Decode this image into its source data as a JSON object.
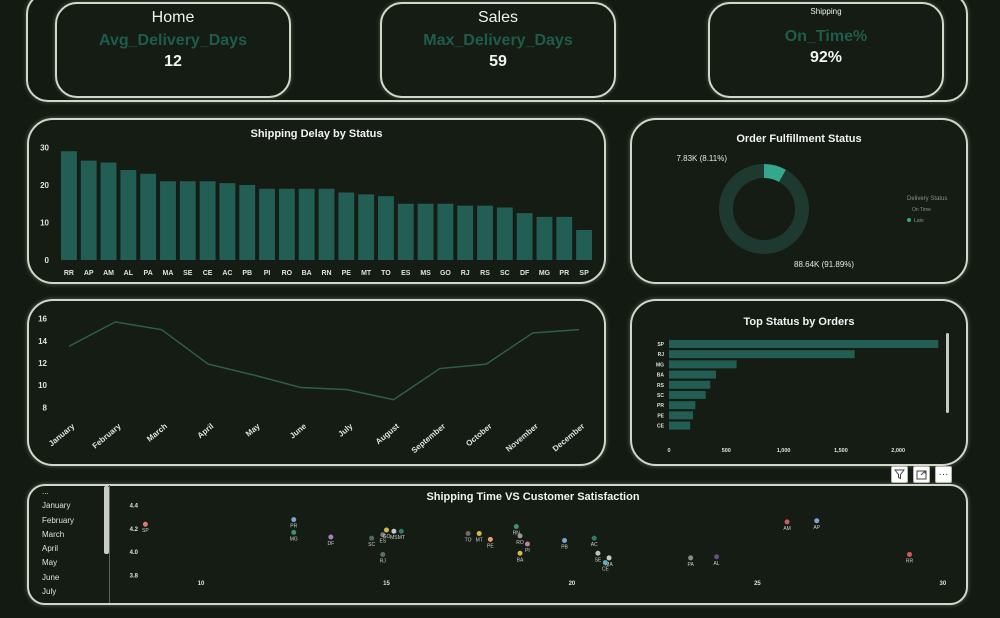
{
  "kpis": [
    {
      "nav": "Home",
      "metric": "Avg_Delivery_Days",
      "value": "12"
    },
    {
      "nav": "Sales",
      "metric": "Max_Delivery_Days",
      "value": "59"
    },
    {
      "nav": "Shipping",
      "metric": "On_Time%",
      "value": "92%"
    }
  ],
  "delay_chart": {
    "chart_data": {
      "type": "bar",
      "title": "Shipping Delay by Status",
      "categories": [
        "RR",
        "AP",
        "AM",
        "AL",
        "PA",
        "MA",
        "SE",
        "CE",
        "AC",
        "PB",
        "PI",
        "RO",
        "BA",
        "RN",
        "PE",
        "MT",
        "TO",
        "ES",
        "MS",
        "GO",
        "RJ",
        "RS",
        "SC",
        "DF",
        "MG",
        "PR",
        "SP"
      ],
      "values": [
        29,
        26.5,
        26,
        24,
        23,
        21,
        21,
        21,
        20.5,
        20,
        19,
        19,
        19,
        19,
        18,
        17.5,
        17,
        15,
        15,
        15,
        14.5,
        14.5,
        14,
        12.5,
        11.5,
        11.5,
        8
      ],
      "yticks": [
        0,
        10,
        20,
        30
      ],
      "ylim": [
        0,
        32
      ],
      "color": "#235e54"
    }
  },
  "fulfillment": {
    "chart_data": {
      "type": "pie",
      "title": "Order Fulfillment Status",
      "slices": [
        {
          "name": "Late",
          "value": 7.83,
          "label": "7.83K (8.11%)",
          "color": "#33a88e"
        },
        {
          "name": "On Time",
          "value": 88.64,
          "label": "88.64K (91.89%)",
          "color": "#1e3a30"
        }
      ],
      "legend_title": "Delivery Status",
      "legend": [
        "On Time",
        "Late"
      ]
    }
  },
  "monthly_line": {
    "chart_data": {
      "type": "line",
      "categories": [
        "January",
        "February",
        "March",
        "April",
        "May",
        "June",
        "July",
        "August",
        "September",
        "October",
        "November",
        "December"
      ],
      "values": [
        13.5,
        15.7,
        15,
        11.9,
        10.9,
        9.8,
        9.6,
        8.7,
        11.5,
        11.9,
        14.7,
        15
      ],
      "yticks": [
        8,
        10,
        12,
        14,
        16
      ],
      "ylim": [
        7.5,
        16.5
      ],
      "color": "#2c5e50"
    }
  },
  "top_status": {
    "chart_data": {
      "type": "bar",
      "orientation": "horizontal",
      "title": "Top Status by Orders",
      "categories": [
        "SP",
        "RJ",
        "MG",
        "BA",
        "RS",
        "SC",
        "PR",
        "PE",
        "CE"
      ],
      "values": [
        2350,
        1620,
        590,
        410,
        360,
        320,
        230,
        210,
        185
      ],
      "xticks": [
        0,
        500,
        1000,
        1500,
        2000
      ],
      "xtick_labels": [
        "0",
        "500",
        "1,000",
        "1,500",
        "2,000"
      ],
      "xlim": [
        0,
        2400
      ],
      "color": "#235e54"
    }
  },
  "scatter": {
    "chart_data": {
      "type": "scatter",
      "title": "Shipping Time VS Customer Satisfaction",
      "xticks": [
        10,
        15,
        20,
        25,
        30
      ],
      "yticks": [
        3.8,
        4.0,
        4.2,
        4.4
      ],
      "xlim": [
        7.6,
        30.3
      ],
      "ylim": [
        3.76,
        4.44
      ],
      "points": [
        {
          "label": "SP",
          "x": 8.5,
          "y": 4.24,
          "color": "#e07a6a"
        },
        {
          "label": "PR",
          "x": 12.5,
          "y": 4.28,
          "color": "#7aa6d6"
        },
        {
          "label": "MG",
          "x": 12.5,
          "y": 4.17,
          "color": "#3d8f75"
        },
        {
          "label": "DF",
          "x": 13.5,
          "y": 4.13,
          "color": "#a87bc9"
        },
        {
          "label": "SC",
          "x": 14.6,
          "y": 4.12,
          "color": "#4a6a64"
        },
        {
          "label": "ES",
          "x": 14.9,
          "y": 4.15,
          "color": "#7a7a7a"
        },
        {
          "label": "GO",
          "x": 15.0,
          "y": 4.19,
          "color": "#d4b848"
        },
        {
          "label": "MS",
          "x": 15.2,
          "y": 4.18,
          "color": "#c8c8c8"
        },
        {
          "label": "MT",
          "x": 15.4,
          "y": 4.18,
          "color": "#2d7a6a"
        },
        {
          "label": "RJ",
          "x": 14.9,
          "y": 3.98,
          "color": "#5a6e6a"
        },
        {
          "label": "TO",
          "x": 17.2,
          "y": 4.16,
          "color": "#6a6a6a"
        },
        {
          "label": "MT",
          "x": 17.5,
          "y": 4.16,
          "color": "#d4b848"
        },
        {
          "label": "PE",
          "x": 17.8,
          "y": 4.11,
          "color": "#e0a070"
        },
        {
          "label": "RN",
          "x": 18.5,
          "y": 4.22,
          "color": "#3d8f75"
        },
        {
          "label": "RO",
          "x": 18.6,
          "y": 4.14,
          "color": "#9a9a9a"
        },
        {
          "label": "PI",
          "x": 18.8,
          "y": 4.07,
          "color": "#c07ab0"
        },
        {
          "label": "BA",
          "x": 18.6,
          "y": 3.99,
          "color": "#d4b848"
        },
        {
          "label": "PB",
          "x": 19.8,
          "y": 4.1,
          "color": "#7aa6d6"
        },
        {
          "label": "AC",
          "x": 20.6,
          "y": 4.12,
          "color": "#2d7a6a"
        },
        {
          "label": "SE",
          "x": 20.7,
          "y": 3.99,
          "color": "#bfbfbf"
        },
        {
          "label": "MA",
          "x": 21.0,
          "y": 3.95,
          "color": "#c8c8c8"
        },
        {
          "label": "CE",
          "x": 20.9,
          "y": 3.91,
          "color": "#5fb0c0"
        },
        {
          "label": "PA",
          "x": 23.2,
          "y": 3.95,
          "color": "#8a8a8a"
        },
        {
          "label": "AL",
          "x": 23.9,
          "y": 3.96,
          "color": "#6a4a8a"
        },
        {
          "label": "AM",
          "x": 25.8,
          "y": 4.26,
          "color": "#d05a5a"
        },
        {
          "label": "AP",
          "x": 26.6,
          "y": 4.27,
          "color": "#7aa6d6"
        },
        {
          "label": "RR",
          "x": 29.1,
          "y": 3.98,
          "color": "#d05a5a"
        }
      ]
    }
  },
  "month_slicer": {
    "items": [
      "...",
      "January",
      "February",
      "March",
      "April",
      "May",
      "June",
      "July"
    ]
  },
  "visual_header": {
    "filter_icon": "filter-icon",
    "focus_icon": "focus-mode-icon",
    "more_label": "···"
  }
}
